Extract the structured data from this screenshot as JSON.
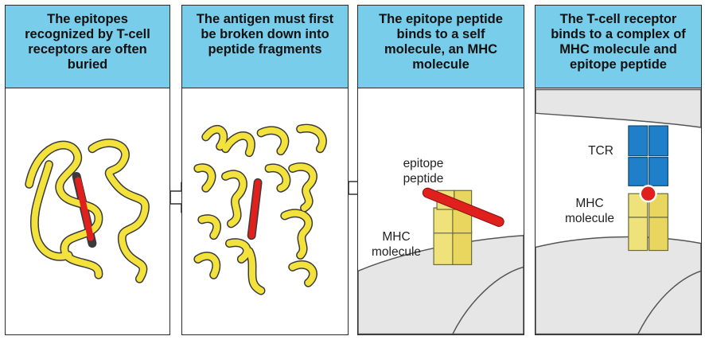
{
  "panels": [
    {
      "header": "The epitopes\nrecognized by T-cell\nreceptors are often\nburied"
    },
    {
      "header": "The antigen must first\nbe broken down into\npeptide fragments"
    },
    {
      "header": "The epitope peptide\nbinds to a self\nmolecule, an MHC\nmolecule",
      "labels": {
        "epitope": "epitope\npeptide",
        "mhc": "MHC\nmolecule"
      }
    },
    {
      "header": "The T-cell receptor\nbinds to a complex of\nMHC molecule and\nepitope peptide",
      "labels": {
        "tcr": "TCR",
        "mhc": "MHC\nmolecule"
      }
    }
  ],
  "colors": {
    "header_bg": "#78cdea",
    "protein": "#f3e23c",
    "epitope": "#e0201c",
    "tcr": "#1f7fc9",
    "mhc": "#f0e27a",
    "cell": "#e6e6e6"
  }
}
